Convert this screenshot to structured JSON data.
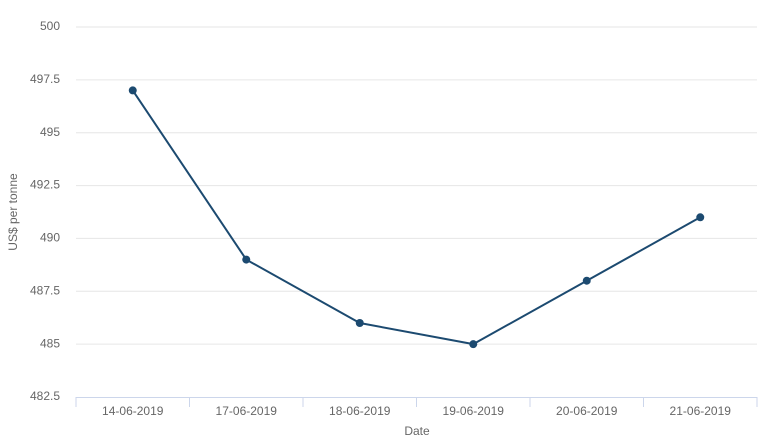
{
  "chart_data": {
    "type": "line",
    "x_label": "Date",
    "y_label": "US$ per tonne",
    "categories": [
      "14-06-2019",
      "17-06-2019",
      "18-06-2019",
      "19-06-2019",
      "20-06-2019",
      "21-06-2019"
    ],
    "values": [
      497,
      489,
      486,
      485,
      488,
      491
    ],
    "color": "#1c4a70",
    "ylim": [
      482.5,
      500
    ],
    "yticks": [
      482.5,
      485,
      487.5,
      490,
      492.5,
      495,
      497.5,
      500
    ],
    "grid": true
  }
}
